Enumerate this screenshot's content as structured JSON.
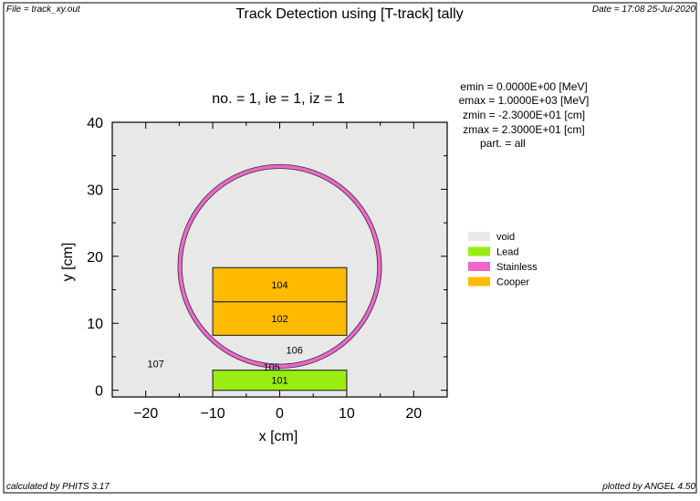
{
  "header": {
    "file_label": "File = track_xy.out",
    "title": "Track Detection using [T-track] tally",
    "date_label": "Date = 17:08 25-Jul-2020"
  },
  "plot": {
    "subtitle": "no. =  1,  ie =  1,  iz =  1",
    "xlabel": "x [cm]",
    "ylabel": "y [cm]",
    "xlim": [
      -25,
      25
    ],
    "ylim": [
      -1,
      40
    ],
    "xticks": [
      -20,
      -10,
      0,
      10,
      20
    ],
    "xtick_labels": [
      "−20",
      "−10",
      "0",
      "10",
      "20"
    ],
    "yticks": [
      0,
      10,
      20,
      30,
      40
    ],
    "ytick_labels": [
      "0",
      "10",
      "20",
      "30",
      "40"
    ],
    "background_color": "#e8e8e8"
  },
  "info": {
    "lines": [
      "emin  =   0.0000E+00 [MeV]",
      "emax  =   1.0000E+03 [MeV]",
      "zmin  =  -2.3000E+01 [cm]",
      "zmax  =   2.3000E+01 [cm]",
      "part. = all"
    ]
  },
  "legend": {
    "position": "right",
    "items": [
      {
        "label": "void",
        "color": "#e8e8e8"
      },
      {
        "label": "Lead",
        "color": "#99ee11"
      },
      {
        "label": "Stainless",
        "color": "#ee66cc"
      },
      {
        "label": "Cooper",
        "color": "#ffbb00"
      }
    ]
  },
  "geometry": {
    "ring": {
      "cx": 0,
      "cy": 18.5,
      "r_outer": 15.2,
      "r_inner": 14.6,
      "color": "#ee66cc"
    },
    "regions": [
      {
        "id": "104",
        "label": "104",
        "x0": -10,
        "x1": 10,
        "y0": 13.2,
        "y1": 18.3,
        "color": "#ffbb00"
      },
      {
        "id": "102",
        "label": "102",
        "x0": -10,
        "x1": 10,
        "y0": 8.2,
        "y1": 13.2,
        "color": "#ffbb00"
      },
      {
        "id": "101",
        "label": "101",
        "x0": -10,
        "x1": 10,
        "y0": 0,
        "y1": 3,
        "color": "#99ee11"
      }
    ],
    "region_labels": [
      {
        "label": "107",
        "x": -18.5,
        "y": 4
      },
      {
        "label": "106",
        "x": 2.2,
        "y": 6
      },
      {
        "label": "105",
        "x": -1.2,
        "y": 3.5
      }
    ]
  },
  "footer": {
    "left_label": "calculated by PHITS 3.17",
    "right_label": "plotted by ANGEL 4.50"
  }
}
